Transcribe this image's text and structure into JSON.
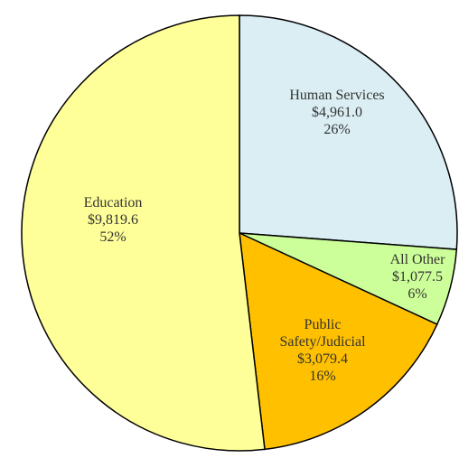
{
  "chart_data": {
    "type": "pie",
    "categories": [
      "Human Services",
      "All Other",
      "Public Safety/Judicial",
      "Education"
    ],
    "values": [
      4961.0,
      1077.5,
      3079.4,
      9819.6
    ],
    "value_labels": [
      "$4,961.0",
      "$1,077.5",
      "$3,079.4",
      "$9,819.6"
    ],
    "percentages": [
      26,
      6,
      16,
      52
    ],
    "percentage_labels": [
      "26%",
      "6%",
      "16%",
      "52%"
    ],
    "colors": [
      "#daeef3",
      "#ccff99",
      "#ffc000",
      "#ffff99"
    ]
  }
}
